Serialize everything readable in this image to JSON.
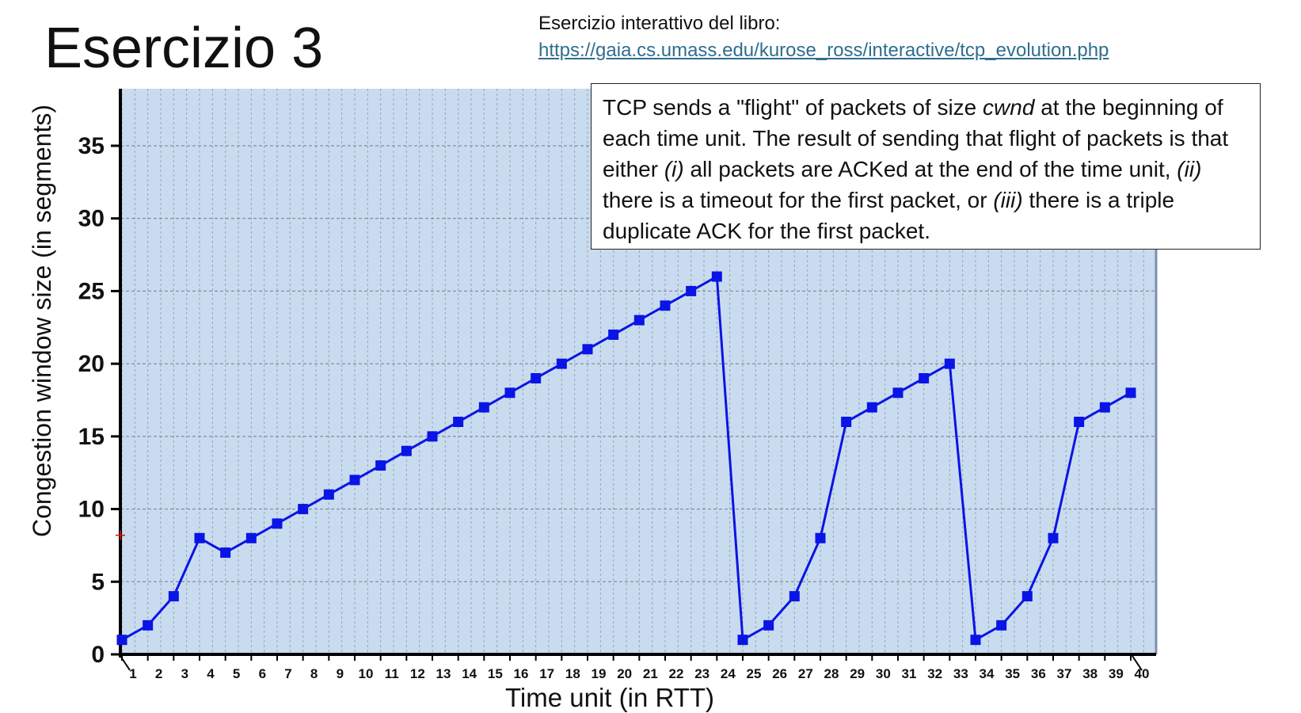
{
  "title": "Esercizio 3",
  "reference": {
    "caption": "Esercizio interattivo del libro:",
    "link": "https://gaia.cs.umass.edu/kurose_ross/interactive/tcp_evolution.php"
  },
  "note": {
    "p1": "TCP sends a \"flight\" of packets of size ",
    "cwnd": "cwnd",
    "p2": " at the beginning of each time unit. The result of sending that flight of packets is that either ",
    "i": "(i)",
    "p3": " all packets are ACKed at the end of the time unit, ",
    "ii": "(ii)",
    "p4": " there is a timeout for the first packet, or ",
    "iii": "(iii)",
    "p5": " there is a triple duplicate ACK for the first packet."
  },
  "colors": {
    "plot_bg": "#c9dcef",
    "series": "#0a14e6",
    "grid": "#8d9aa8"
  },
  "chart_data": {
    "type": "line",
    "title": "",
    "xlabel": "Time unit (in RTT)",
    "ylabel": "Congestion window size (in segments)",
    "xlim": [
      0,
      40
    ],
    "ylim": [
      0,
      35
    ],
    "x_ticks": [
      1,
      2,
      3,
      4,
      5,
      6,
      7,
      8,
      9,
      10,
      11,
      12,
      13,
      14,
      15,
      16,
      17,
      18,
      19,
      20,
      21,
      22,
      23,
      24,
      25,
      26,
      27,
      28,
      29,
      30,
      31,
      32,
      33,
      34,
      35,
      36,
      37,
      38,
      39,
      40
    ],
    "y_ticks": [
      0,
      5,
      10,
      15,
      20,
      25,
      30,
      35
    ],
    "grid": true,
    "series": [
      {
        "name": "cwnd",
        "x": [
          1,
          2,
          3,
          4,
          5,
          6,
          7,
          8,
          9,
          10,
          11,
          12,
          13,
          14,
          15,
          16,
          17,
          18,
          19,
          20,
          21,
          22,
          23,
          24,
          25,
          26,
          27,
          28,
          29,
          30,
          31,
          32,
          33,
          34,
          35,
          36,
          37,
          38,
          39,
          40
        ],
        "values": [
          1,
          2,
          4,
          8,
          7,
          8,
          9,
          10,
          11,
          12,
          13,
          14,
          15,
          16,
          17,
          18,
          19,
          20,
          21,
          22,
          23,
          24,
          25,
          26,
          1,
          2,
          4,
          8,
          16,
          17,
          18,
          19,
          20,
          1,
          2,
          4,
          8,
          16,
          17,
          18
        ]
      }
    ]
  }
}
